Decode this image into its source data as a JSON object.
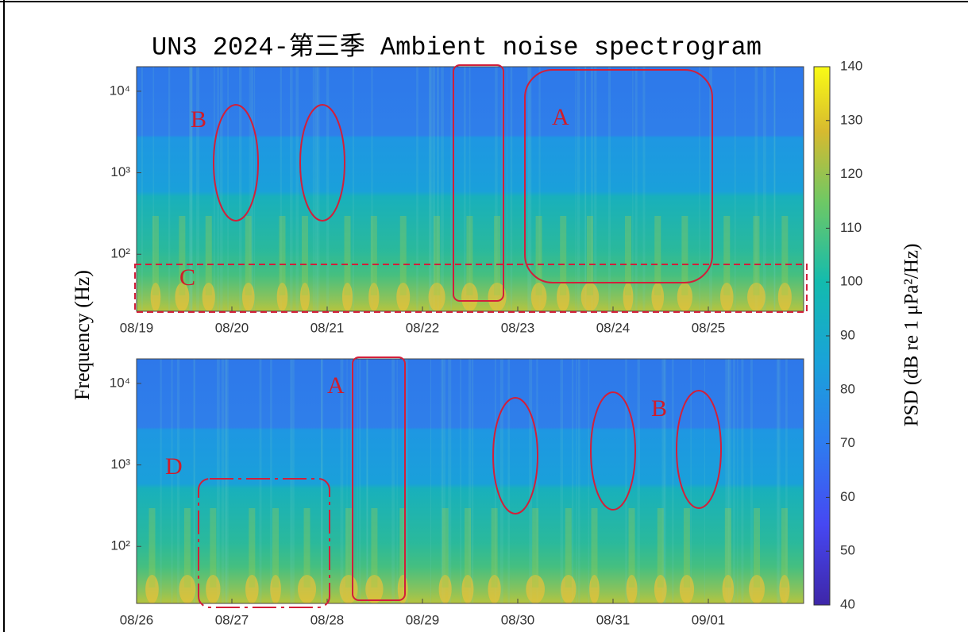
{
  "chart_data": [
    {
      "type": "spectrogram",
      "title": "UN3 2024-第三季 Ambient noise spectrogram",
      "ylabel": "Frequency (Hz)",
      "categories": [
        "08/19",
        "08/20",
        "08/21",
        "08/22",
        "08/23",
        "08/24",
        "08/25"
      ],
      "yscale": "log",
      "ylim": [
        20,
        20000
      ],
      "yticks": [
        {
          "value": 100,
          "label": "10²"
        },
        {
          "value": 1000,
          "label": "10³"
        },
        {
          "value": 10000,
          "label": "10⁴"
        }
      ],
      "annotations": [
        "B",
        "A",
        "C"
      ],
      "colorbar": {
        "label": "PSD (dB re 1 μPa²/Hz)",
        "lim": [
          40,
          140
        ],
        "ticks": [
          40,
          50,
          60,
          70,
          80,
          90,
          100,
          110,
          120,
          130,
          140
        ]
      }
    },
    {
      "type": "spectrogram",
      "categories": [
        "08/26",
        "08/27",
        "08/28",
        "08/29",
        "08/30",
        "08/31",
        "09/01"
      ],
      "yscale": "log",
      "ylim": [
        20,
        20000
      ],
      "yticks": [
        {
          "value": 100,
          "label": "10²"
        },
        {
          "value": 1000,
          "label": "10³"
        },
        {
          "value": 10000,
          "label": "10⁴"
        }
      ],
      "annotations": [
        "A",
        "B",
        "D"
      ]
    }
  ]
}
